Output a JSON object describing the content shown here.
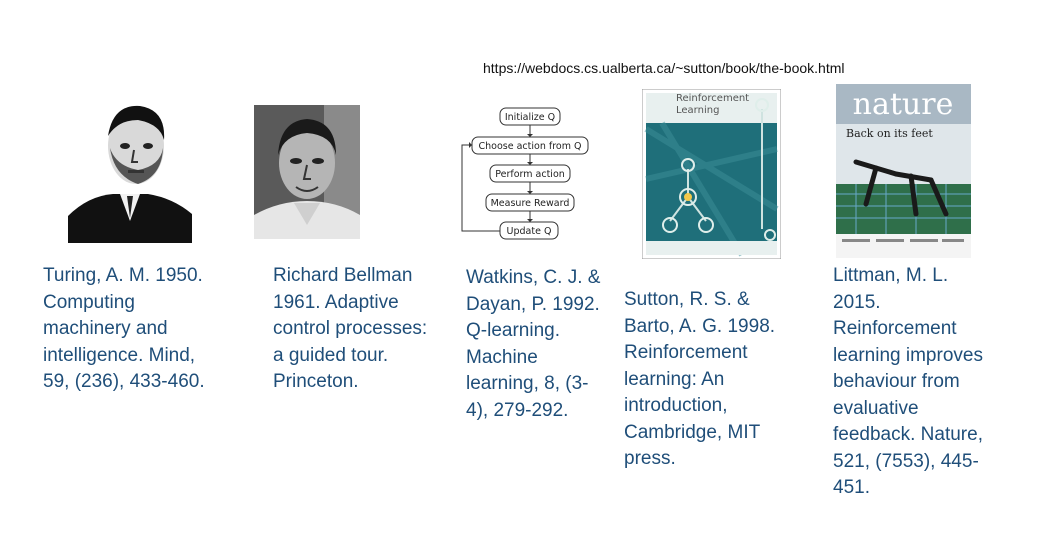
{
  "url": "https://webdocs.cs.ualberta.ca/~sutton/book/the-book.html",
  "colors": {
    "text": "#1f4e79"
  },
  "flowchart": {
    "steps": [
      "Initialize Q",
      "Choose action from Q",
      "Perform action",
      "Measure Reward",
      "Update Q"
    ]
  },
  "book_cover": {
    "title_line1": "Reinforcement",
    "title_line2": "Learning"
  },
  "nature_cover": {
    "masthead": "nature",
    "headline": "Back on its feet"
  },
  "references": [
    {
      "lines": [
        "Turing, A. M. 1950.",
        "Computing",
        "machinery and",
        "intelligence. Mind,",
        "59, (236), 433-460."
      ]
    },
    {
      "lines": [
        "Richard Bellman",
        "1961. Adaptive",
        "control processes:",
        "a guided tour.",
        "Princeton."
      ]
    },
    {
      "lines": [
        "Watkins, C. J. &",
        "Dayan, P. 1992.",
        "Q-learning.",
        "Machine",
        "learning, 8, (3-",
        "4), 279-292."
      ]
    },
    {
      "lines": [
        "Sutton, R. S. &",
        "Barto, A. G. 1998.",
        "Reinforcement",
        "learning: An",
        "introduction,",
        "Cambridge, MIT",
        "press."
      ]
    },
    {
      "lines": [
        "Littman, M. L.",
        "2015.",
        "Reinforcement",
        "learning improves",
        "behaviour from",
        "evaluative",
        "feedback. Nature,",
        "521, (7553), 445-",
        "451."
      ]
    }
  ]
}
